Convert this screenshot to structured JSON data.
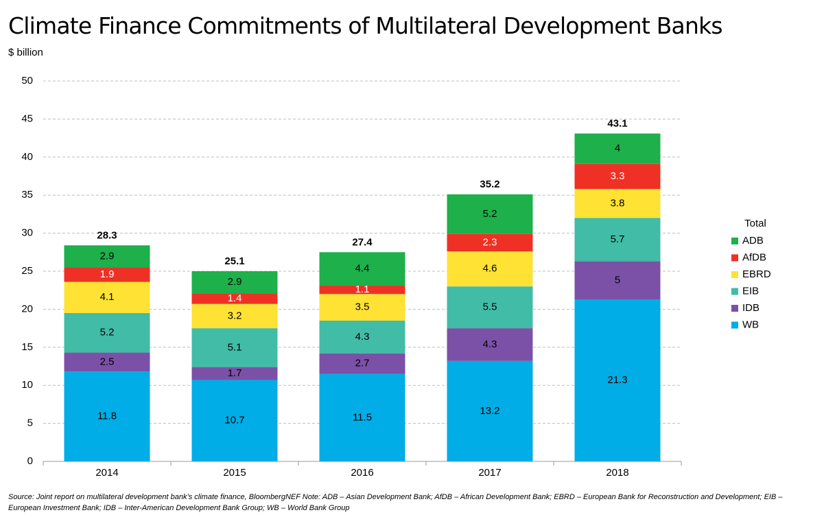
{
  "title": "Climate Finance Commitments of Multilateral Development Banks",
  "unit_label": "$ billion",
  "source_note": "Source: Joint report on multilateral development bank’s climate finance, BloombergNEF Note: ADB – Asian Development Bank; AfDB – African Development Bank; EBRD – European Bank for Reconstruction and Development; EIB – European Investment Bank; IDB – Inter-American Development Bank Group; WB – World Bank Group",
  "chart_data": {
    "type": "bar",
    "stacked": true,
    "title": "Climate Finance Commitments of Multilateral Development Banks",
    "ylabel": "$ billion",
    "xlabel": "",
    "ylim": [
      0,
      50
    ],
    "yticks": [
      0,
      5,
      10,
      15,
      20,
      25,
      30,
      35,
      40,
      45,
      50
    ],
    "grid": true,
    "legend_title": "Total",
    "legend_position": "right",
    "categories": [
      "2014",
      "2015",
      "2016",
      "2017",
      "2018"
    ],
    "totals": [
      "28.3",
      "25.1",
      "27.4",
      "35.2",
      "43.1"
    ],
    "series": [
      {
        "name": "WB",
        "color": "#00ADE6",
        "values": [
          11.8,
          10.7,
          11.5,
          13.2,
          21.3
        ],
        "labels": [
          "11.8",
          "10.7",
          "11.5",
          "13.2",
          "21.3"
        ]
      },
      {
        "name": "IDB",
        "color": "#7B51A7",
        "values": [
          2.5,
          1.7,
          2.7,
          4.3,
          5
        ],
        "labels": [
          "2.5",
          "1.7",
          "2.7",
          "4.3",
          "5"
        ]
      },
      {
        "name": "EIB",
        "color": "#41BCA6",
        "values": [
          5.2,
          5.1,
          4.3,
          5.5,
          5.7
        ],
        "labels": [
          "5.2",
          "5.1",
          "4.3",
          "5.5",
          "5.7"
        ]
      },
      {
        "name": "EBRD",
        "color": "#FFE234",
        "values": [
          4.1,
          3.2,
          3.5,
          4.6,
          3.8
        ],
        "labels": [
          "4.1",
          "3.2",
          "3.5",
          "4.6",
          "3.8"
        ]
      },
      {
        "name": "AfDB",
        "color": "#EE3124",
        "values": [
          1.9,
          1.4,
          1.1,
          2.3,
          3.3
        ],
        "labels": [
          "1.9",
          "1.4",
          "1.1",
          "2.3",
          "3.3"
        ]
      },
      {
        "name": "ADB",
        "color": "#1DB04B",
        "values": [
          2.9,
          2.9,
          4.4,
          5.2,
          4
        ],
        "labels": [
          "2.9",
          "2.9",
          "4.4",
          "5.2",
          "4"
        ]
      }
    ]
  }
}
